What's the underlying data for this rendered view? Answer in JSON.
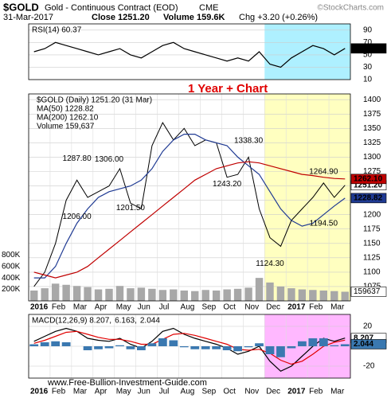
{
  "header": {
    "symbol": "$GOLD",
    "name": "Gold - Continuous Contract (EOD)",
    "exchange": "CME",
    "date": "31-Mar-2017",
    "close": "Close 1251.20",
    "volume": "Volume 159.6K",
    "change": "Chg +3.20 (+0.26%)",
    "source": "©StockCharts.com",
    "annotation": "1 Year + Chart",
    "footer": "www.Free-Bullion-Investment-Guide.com"
  },
  "chart_data": [
    {
      "type": "line",
      "title": "RSI(14) 60.37",
      "ylim": [
        10,
        100
      ],
      "yticks": [
        10,
        30,
        50,
        70,
        90
      ],
      "grid": true,
      "highlight": {
        "from": 22,
        "color": "#aef0ff"
      },
      "series": [
        {
          "color": "#000000",
          "last_label": "60.37",
          "values": [
            55,
            60,
            70,
            65,
            60,
            55,
            50,
            55,
            60,
            50,
            45,
            55,
            65,
            70,
            60,
            55,
            50,
            45,
            40,
            45,
            40,
            55,
            35,
            30,
            45,
            55,
            65,
            60,
            50,
            60.37
          ]
        }
      ]
    },
    {
      "type": "line",
      "ylim": [
        1050,
        1410
      ],
      "grid": true,
      "yticks": [
        1075,
        1100,
        1125,
        1150,
        1175,
        1200,
        1225,
        1250,
        1275,
        1300,
        1325,
        1350,
        1375,
        1400
      ],
      "xticks": [
        {
          "value": 0,
          "label": "2016"
        },
        {
          "value": 2,
          "label": "Feb"
        },
        {
          "value": 4,
          "label": "Mar"
        },
        {
          "value": 6,
          "label": "Apr"
        },
        {
          "value": 8,
          "label": "May"
        },
        {
          "value": 10,
          "label": "Jun"
        },
        {
          "value": 12,
          "label": "Jul"
        },
        {
          "value": 14,
          "label": "Aug"
        },
        {
          "value": 16,
          "label": "Sep"
        },
        {
          "value": 18,
          "label": "Oct"
        },
        {
          "value": 20,
          "label": "Nov"
        },
        {
          "value": 22,
          "label": "Dec"
        },
        {
          "value": 24,
          "label": "2017"
        },
        {
          "value": 26,
          "label": "Feb"
        },
        {
          "value": 28,
          "label": "Mar"
        }
      ],
      "highlight": {
        "from": 22,
        "color": "#ffffc0"
      },
      "series": [
        {
          "name": "$GOLD (Daily) 1251.20 (31 Mar)",
          "color": "#000000",
          "last_label": "1251.20",
          "values": [
            1075,
            1100,
            1150,
            1225,
            1260,
            1230,
            1240,
            1250,
            1280,
            1220,
            1210,
            1320,
            1360,
            1330,
            1350,
            1320,
            1330,
            1325,
            1265,
            1270,
            1300,
            1210,
            1160,
            1145,
            1190,
            1210,
            1230,
            1255,
            1230,
            1251.2
          ]
        },
        {
          "name": "MA(50) 1228.82",
          "color": "#1f3a93",
          "last_label": "1228.82",
          "values": [
            1090,
            1090,
            1110,
            1150,
            1185,
            1210,
            1230,
            1240,
            1245,
            1250,
            1260,
            1280,
            1310,
            1330,
            1340,
            1340,
            1330,
            1325,
            1320,
            1300,
            1285,
            1270,
            1240,
            1210,
            1190,
            1180,
            1185,
            1200,
            1215,
            1228.82
          ]
        },
        {
          "name": "MA(200) 1262.10",
          "color": "#c00000",
          "last_label": "1262.10",
          "values": [
            1100,
            1095,
            1090,
            1095,
            1100,
            1110,
            1125,
            1140,
            1155,
            1170,
            1185,
            1200,
            1215,
            1230,
            1245,
            1260,
            1270,
            1280,
            1285,
            1290,
            1292,
            1290,
            1285,
            1280,
            1275,
            1270,
            1268,
            1265,
            1263,
            1262.1
          ]
        }
      ],
      "volume": {
        "name": "Volume 159,637",
        "color": "#a8a8a8",
        "last_label": "159637",
        "ylim": [
          0,
          3600000
        ],
        "yticks": [
          {
            "value": 200000,
            "label": "200K"
          },
          {
            "value": 400000,
            "label": "400K"
          },
          {
            "value": 600000,
            "label": "600K"
          },
          {
            "value": 800000,
            "label": "800K"
          }
        ],
        "values": [
          180000,
          220000,
          300000,
          280000,
          260000,
          240000,
          200000,
          210000,
          260000,
          220000,
          230000,
          210000,
          190000,
          200000,
          180000,
          170000,
          190000,
          180000,
          200000,
          210000,
          230000,
          400000,
          320000,
          250000,
          220000,
          200000,
          190000,
          180000,
          170000,
          159637
        ]
      },
      "annotations": [
        {
          "label": "1206.00",
          "value": 1206,
          "x": 4
        },
        {
          "label": "1287.80",
          "value": 1287.8,
          "x": 4
        },
        {
          "label": "1306.00",
          "value": 1306,
          "x": 7
        },
        {
          "label": "1201.50",
          "value": 1201.5,
          "x": 9
        },
        {
          "label": "1338.30",
          "value": 1338.3,
          "x": 20
        },
        {
          "label": "1243.20",
          "value": 1243.2,
          "x": 18
        },
        {
          "label": "1124.30",
          "value": 1124.3,
          "x": 22
        },
        {
          "label": "1264.90",
          "value": 1264.9,
          "x": 27
        },
        {
          "label": "1194.50",
          "value": 1194.5,
          "x": 27
        }
      ]
    },
    {
      "type": "line",
      "ylim": [
        -32,
        32
      ],
      "yticks": [
        -20,
        0,
        20
      ],
      "grid": true,
      "xticks": [
        {
          "value": 0,
          "label": "2016"
        },
        {
          "value": 2,
          "label": "Feb"
        },
        {
          "value": 4,
          "label": "Mar"
        },
        {
          "value": 6,
          "label": "Apr"
        },
        {
          "value": 8,
          "label": "May"
        },
        {
          "value": 10,
          "label": "Jun"
        },
        {
          "value": 12,
          "label": "Jul"
        },
        {
          "value": 14,
          "label": "Aug"
        },
        {
          "value": 16,
          "label": "Sep"
        },
        {
          "value": 18,
          "label": "Oct"
        },
        {
          "value": 20,
          "label": "Nov"
        },
        {
          "value": 22,
          "label": "Dec"
        },
        {
          "value": 24,
          "label": "2017"
        },
        {
          "value": 26,
          "label": "Feb"
        },
        {
          "value": 28,
          "label": "Mar"
        }
      ],
      "highlight": {
        "from": 22,
        "color": "#ffb8ff"
      },
      "series": [
        {
          "name": "MACD(12,26,9) 8.207,",
          "color": "#000000",
          "last_label": "8.207",
          "values": [
            5,
            10,
            15,
            18,
            15,
            8,
            6,
            5,
            8,
            2,
            -2,
            5,
            15,
            18,
            12,
            8,
            5,
            2,
            -2,
            -8,
            -5,
            0,
            -15,
            -25,
            -20,
            -10,
            0,
            8,
            5,
            8.207
          ]
        },
        {
          "name": "6.163,",
          "color": "#e00000",
          "values": [
            3,
            6,
            10,
            14,
            15,
            12,
            9,
            7,
            7,
            5,
            2,
            2,
            7,
            12,
            13,
            11,
            8,
            5,
            2,
            -3,
            -4,
            -3,
            -7,
            -14,
            -18,
            -15,
            -8,
            0,
            4,
            6.163
          ]
        },
        {
          "name": "2.044",
          "color": "#3a78b0",
          "type": "bar",
          "last_label": "2.044",
          "values": [
            2,
            4,
            5,
            4,
            0,
            -4,
            -3,
            -2,
            1,
            -3,
            -4,
            3,
            8,
            6,
            -1,
            -3,
            -3,
            -3,
            -4,
            -5,
            -1,
            3,
            -8,
            -11,
            -2,
            5,
            8,
            8,
            1,
            2.044
          ]
        }
      ]
    }
  ]
}
